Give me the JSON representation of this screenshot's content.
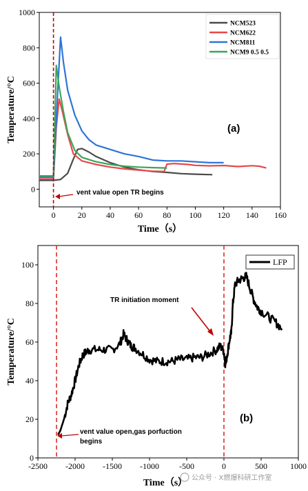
{
  "chart_data": [
    {
      "type": "line",
      "panel_label": "(a)",
      "xlabel": "Time（s）",
      "ylabel": "Temperature/°C",
      "xlim": [
        -10,
        160
      ],
      "ylim": [
        -100,
        1000
      ],
      "xticks": [
        0,
        20,
        40,
        60,
        80,
        100,
        120,
        140,
        160
      ],
      "yticks": [
        0,
        200,
        400,
        600,
        800,
        1000
      ],
      "legend_position": "top-right",
      "vline_x": 0,
      "annotation": "vent value open TR begins",
      "series": [
        {
          "name": "NCM523",
          "color": "#4a4a4a",
          "points": [
            [
              -10,
              50
            ],
            [
              0,
              50
            ],
            [
              5,
              55
            ],
            [
              10,
              90
            ],
            [
              14,
              170
            ],
            [
              17,
              225
            ],
            [
              20,
              230
            ],
            [
              25,
              210
            ],
            [
              30,
              185
            ],
            [
              40,
              150
            ],
            [
              50,
              125
            ],
            [
              60,
              110
            ],
            [
              70,
              100
            ],
            [
              80,
              95
            ],
            [
              90,
              88
            ],
            [
              100,
              85
            ],
            [
              112,
              82
            ]
          ]
        },
        {
          "name": "NCM622",
          "color": "#e8474a",
          "points": [
            [
              -10,
              58
            ],
            [
              0,
              58
            ],
            [
              2,
              350
            ],
            [
              4,
              510
            ],
            [
              6,
              450
            ],
            [
              10,
              310
            ],
            [
              14,
              200
            ],
            [
              20,
              160
            ],
            [
              30,
              140
            ],
            [
              40,
              125
            ],
            [
              50,
              115
            ],
            [
              60,
              108
            ],
            [
              70,
              102
            ],
            [
              78,
              100
            ],
            [
              80,
              142
            ],
            [
              85,
              145
            ],
            [
              95,
              140
            ],
            [
              100,
              135
            ],
            [
              110,
              132
            ],
            [
              120,
              134
            ],
            [
              130,
              128
            ],
            [
              140,
              133
            ],
            [
              145,
              130
            ],
            [
              150,
              120
            ]
          ]
        },
        {
          "name": "NCM811",
          "color": "#2e74d6",
          "points": [
            [
              -10,
              68
            ],
            [
              0,
              68
            ],
            [
              3,
              560
            ],
            [
              5,
              860
            ],
            [
              7,
              720
            ],
            [
              10,
              560
            ],
            [
              15,
              420
            ],
            [
              20,
              330
            ],
            [
              25,
              280
            ],
            [
              30,
              250
            ],
            [
              40,
              225
            ],
            [
              50,
              200
            ],
            [
              60,
              185
            ],
            [
              70,
              165
            ],
            [
              80,
              160
            ],
            [
              90,
              160
            ],
            [
              100,
              155
            ],
            [
              110,
              150
            ],
            [
              120,
              150
            ]
          ]
        },
        {
          "name": "NCM9 0.5 0.5",
          "color": "#3aa55a",
          "points": [
            [
              -10,
              75
            ],
            [
              0,
              75
            ],
            [
              2,
              700
            ],
            [
              4,
              580
            ],
            [
              7,
              440
            ],
            [
              10,
              320
            ],
            [
              15,
              220
            ],
            [
              20,
              180
            ],
            [
              30,
              155
            ],
            [
              40,
              140
            ],
            [
              50,
              130
            ],
            [
              60,
              125
            ],
            [
              70,
              122
            ],
            [
              80,
              120
            ]
          ]
        }
      ]
    },
    {
      "type": "line",
      "panel_label": "(b)",
      "xlabel": "Time（s）",
      "ylabel": "Temperature/°C",
      "xlim": [
        -2500,
        1000
      ],
      "ylim": [
        0,
        110
      ],
      "xticks": [
        -2500,
        -2000,
        -1500,
        -1000,
        -500,
        0,
        500,
        1000
      ],
      "yticks": [
        0,
        20,
        40,
        60,
        80,
        100
      ],
      "legend_position": "top-right",
      "vlines_x": [
        -2250,
        0
      ],
      "annotations": [
        "vent value open,gas porfuction begins",
        "TR initiation moment"
      ],
      "series": [
        {
          "name": "LFP",
          "color": "#000000",
          "points": [
            [
              -2230,
              12
            ],
            [
              -2200,
              14
            ],
            [
              -2150,
              20
            ],
            [
              -2100,
              28
            ],
            [
              -2050,
              33
            ],
            [
              -2000,
              40
            ],
            [
              -1950,
              48
            ],
            [
              -1900,
              53
            ],
            [
              -1850,
              55
            ],
            [
              -1800,
              56
            ],
            [
              -1700,
              56
            ],
            [
              -1600,
              56
            ],
            [
              -1500,
              56
            ],
            [
              -1400,
              59
            ],
            [
              -1350,
              64
            ],
            [
              -1300,
              61
            ],
            [
              -1250,
              58
            ],
            [
              -1200,
              57
            ],
            [
              -1100,
              54
            ],
            [
              -1000,
              51
            ],
            [
              -900,
              50
            ],
            [
              -800,
              50
            ],
            [
              -700,
              50
            ],
            [
              -600,
              51
            ],
            [
              -500,
              51
            ],
            [
              -400,
              52
            ],
            [
              -300,
              52
            ],
            [
              -200,
              54
            ],
            [
              -100,
              56
            ],
            [
              -50,
              58
            ],
            [
              0,
              55
            ],
            [
              20,
              48
            ],
            [
              50,
              55
            ],
            [
              80,
              62
            ],
            [
              100,
              65
            ],
            [
              120,
              80
            ],
            [
              150,
              90
            ],
            [
              200,
              92
            ],
            [
              250,
              93
            ],
            [
              300,
              94
            ],
            [
              350,
              88
            ],
            [
              400,
              82
            ],
            [
              450,
              78
            ],
            [
              500,
              76
            ],
            [
              600,
              73
            ],
            [
              700,
              70
            ],
            [
              780,
              67
            ]
          ]
        }
      ]
    }
  ],
  "watermark": "公众号 · X燃爆科研工作室"
}
